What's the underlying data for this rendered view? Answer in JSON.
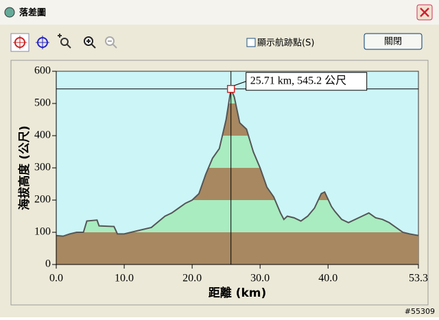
{
  "window": {
    "title": "落差圖",
    "show_points": "顯示航跡點(S)",
    "close": "關閉"
  },
  "watermark": "#55309",
  "chart_data": {
    "type": "area",
    "x_label": "距離 (km)",
    "y_label": "海拔高度 (公尺)",
    "x": [
      0,
      1,
      2,
      3,
      4,
      4.5,
      6.0,
      6.3,
      8.5,
      9,
      10,
      12,
      14,
      16,
      17,
      18,
      19,
      20,
      21,
      22,
      23,
      24,
      25,
      25.71,
      26.2,
      27,
      28,
      29,
      30,
      31,
      32,
      33,
      33.5,
      34,
      35,
      36,
      37,
      38,
      39,
      39.5,
      40.5,
      41,
      42,
      43,
      45,
      46,
      47,
      48,
      49,
      50,
      51,
      52,
      53.3
    ],
    "values": [
      90,
      88,
      95,
      100,
      100,
      135,
      138,
      120,
      118,
      95,
      95,
      105,
      115,
      150,
      160,
      175,
      190,
      200,
      220,
      280,
      330,
      360,
      450,
      545.2,
      520,
      440,
      420,
      350,
      300,
      240,
      210,
      160,
      140,
      150,
      145,
      135,
      150,
      175,
      220,
      225,
      180,
      165,
      140,
      130,
      150,
      160,
      145,
      140,
      130,
      115,
      100,
      95,
      90
    ],
    "line_color": "#555555",
    "background": "#ccf5f8",
    "band_colors": [
      "#a88860",
      "#a8ecc0"
    ],
    "xlim": [
      0,
      53.3
    ],
    "ylim": [
      0,
      600
    ],
    "xticks": [
      {
        "value": 0,
        "label": "0.0"
      },
      {
        "value": 10,
        "label": "10.0"
      },
      {
        "value": 20,
        "label": "20.0"
      },
      {
        "value": 30,
        "label": "30.0"
      },
      {
        "value": 40,
        "label": "40.0"
      },
      {
        "value": 53.3,
        "label": "53.3"
      }
    ],
    "yticks": [
      0,
      100,
      200,
      300,
      400,
      500,
      600
    ],
    "annotation": {
      "text": "25.71 km, 545.2 公尺",
      "x": 25.71,
      "y": 545.2
    }
  }
}
